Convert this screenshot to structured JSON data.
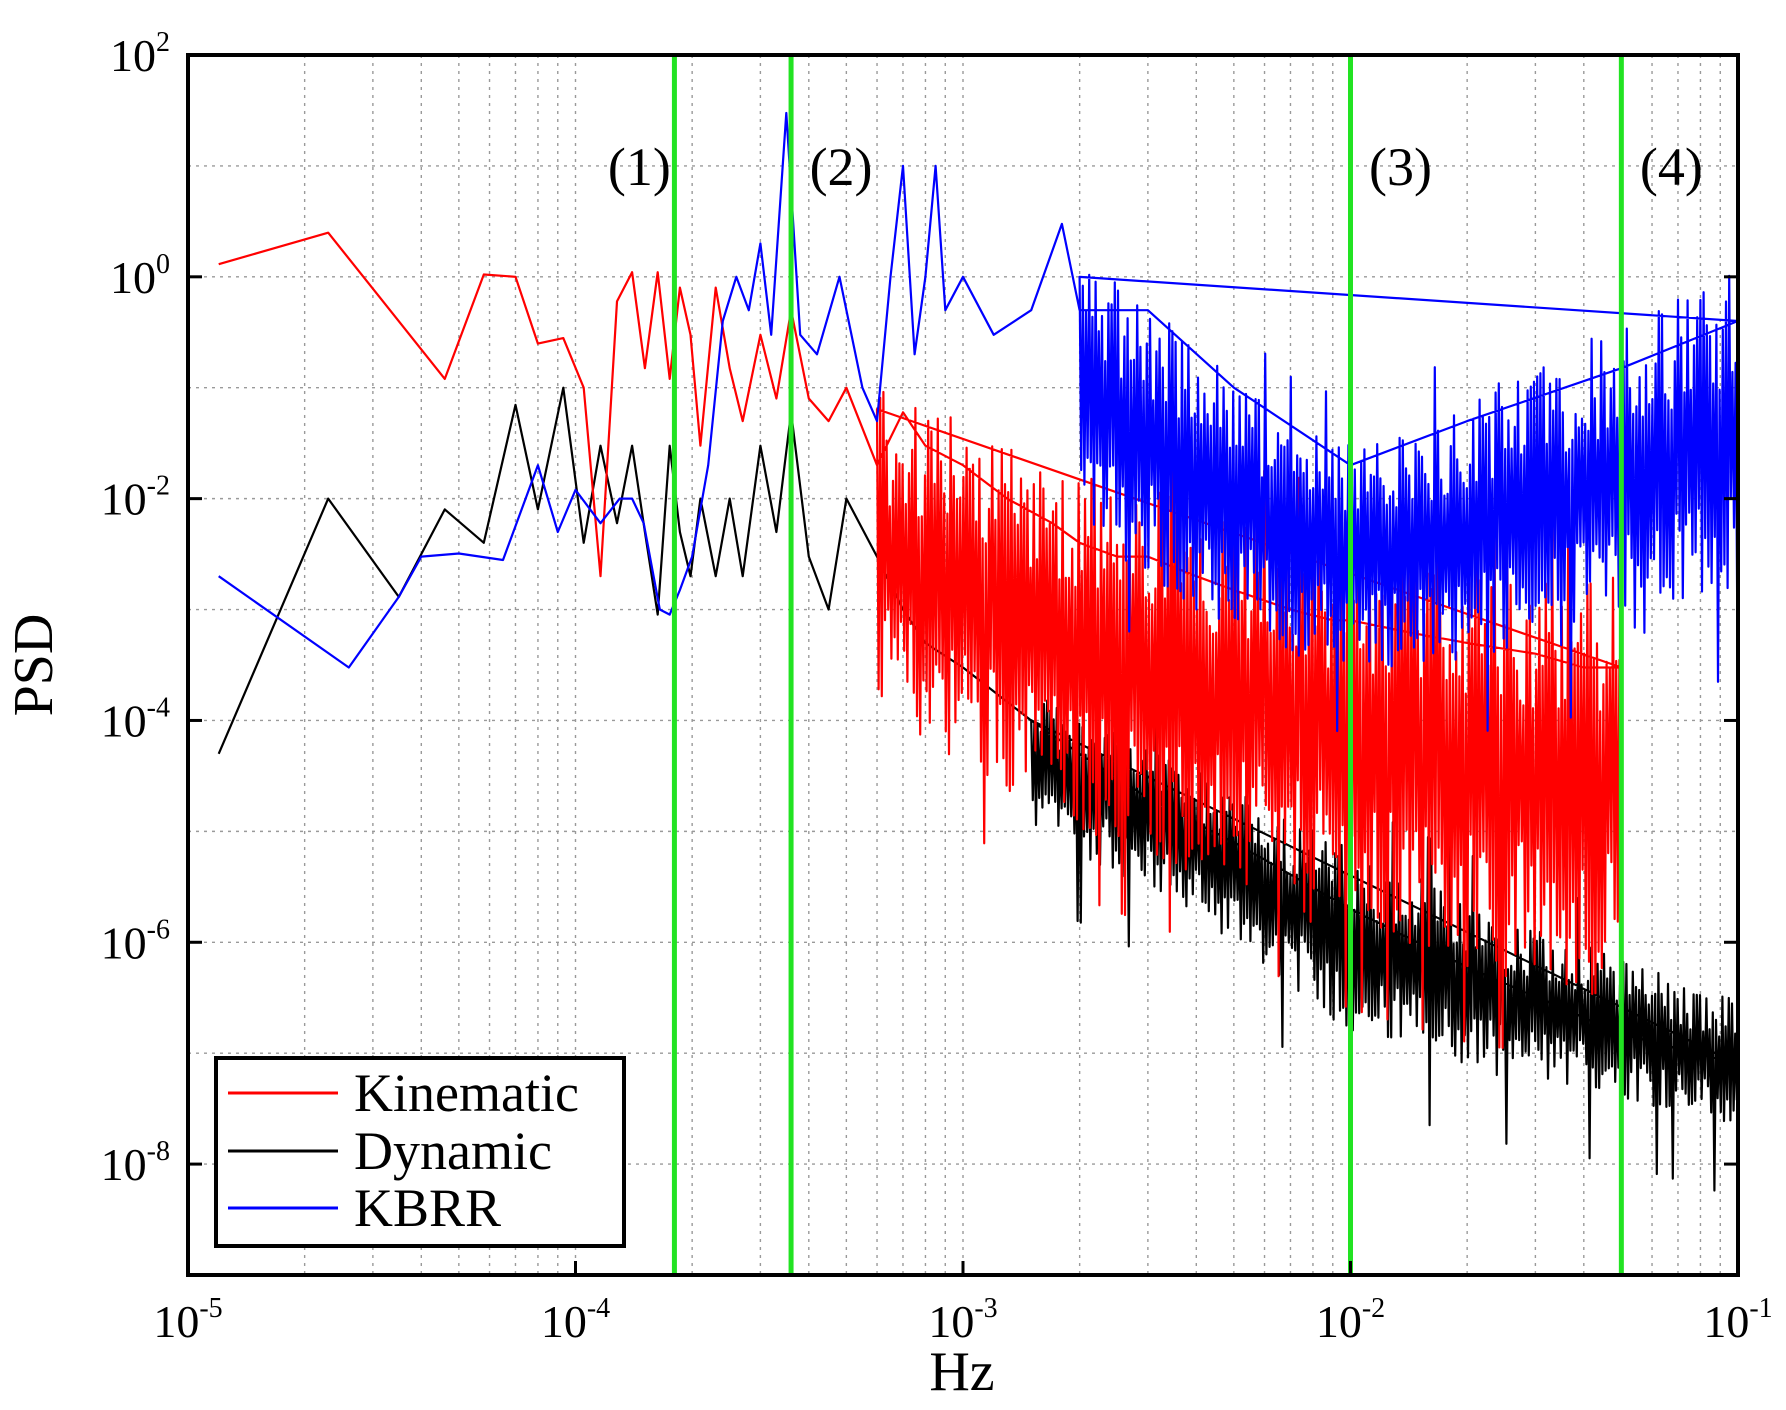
{
  "chart_data": {
    "type": "line",
    "title": "",
    "xlabel": "Hz",
    "ylabel": "PSD",
    "xscale": "log",
    "yscale": "log",
    "xlim": [
      1e-05,
      0.1
    ],
    "ylim": [
      1e-09,
      100
    ],
    "x_ticks": [
      {
        "base": "10",
        "exp": "-5",
        "value": 1e-05
      },
      {
        "base": "10",
        "exp": "-4",
        "value": 0.0001
      },
      {
        "base": "10",
        "exp": "-3",
        "value": 0.001
      },
      {
        "base": "10",
        "exp": "-2",
        "value": 0.01
      },
      {
        "base": "10",
        "exp": "-1",
        "value": 0.1
      }
    ],
    "y_ticks": [
      {
        "base": "10",
        "exp": "2",
        "value": 100
      },
      {
        "base": "10",
        "exp": "0",
        "value": 1
      },
      {
        "base": "10",
        "exp": "-2",
        "value": 0.01
      },
      {
        "base": "10",
        "exp": "-4",
        "value": 0.0001
      },
      {
        "base": "10",
        "exp": "-6",
        "value": 1e-06
      },
      {
        "base": "10",
        "exp": "-8",
        "value": 1e-08
      }
    ],
    "grid": true,
    "legend_position": "bottom-left",
    "series": [
      {
        "name": "Kinematic",
        "color": "#ff0000",
        "x": [
          1.2e-05,
          2.3e-05,
          4.6e-05,
          5.8e-05,
          7e-05,
          8e-05,
          9.3e-05,
          0.000105,
          0.000116,
          0.000128,
          0.00014,
          0.000151,
          0.000163,
          0.000175,
          0.000186,
          0.000198,
          0.00021,
          0.00023,
          0.00025,
          0.00027,
          0.0003,
          0.00033,
          0.00036,
          0.0004,
          0.00045,
          0.0005,
          0.0006,
          0.0007,
          0.0008,
          0.001,
          0.0013,
          0.0017,
          0.002,
          0.0025,
          0.003,
          0.004,
          0.005,
          0.007,
          0.009,
          0.01,
          0.015,
          0.02,
          0.03,
          0.04,
          0.05
        ],
        "values": [
          1.3,
          2.5,
          0.12,
          1.05,
          1.0,
          0.25,
          0.28,
          0.1,
          0.002,
          0.6,
          1.1,
          0.15,
          1.1,
          0.12,
          0.8,
          0.3,
          0.03,
          0.8,
          0.15,
          0.05,
          0.3,
          0.08,
          0.5,
          0.08,
          0.05,
          0.1,
          0.02,
          0.06,
          0.03,
          0.02,
          0.01,
          0.006,
          0.004,
          0.003,
          0.003,
          0.002,
          0.0015,
          0.001,
          0.0008,
          0.0008,
          0.0006,
          0.0005,
          0.0004,
          0.0003,
          0.0003
        ],
        "band_low": [
          {
            "x": 0.0006,
            "y": 0.0001
          },
          {
            "x": 0.001,
            "y": 4e-05
          },
          {
            "x": 0.002,
            "y": 1e-05
          },
          {
            "x": 0.005,
            "y": 3e-06
          },
          {
            "x": 0.01,
            "y": 1e-06
          },
          {
            "x": 0.02,
            "y": 5e-07
          },
          {
            "x": 0.05,
            "y": 3e-07
          }
        ],
        "band_high": [
          {
            "x": 0.0006,
            "y": 0.1
          },
          {
            "x": 0.001,
            "y": 0.05
          },
          {
            "x": 0.002,
            "y": 0.02
          },
          {
            "x": 0.005,
            "y": 0.008
          },
          {
            "x": 0.01,
            "y": 0.005
          },
          {
            "x": 0.02,
            "y": 0.003
          },
          {
            "x": 0.05,
            "y": 0.002
          }
        ]
      },
      {
        "name": "Dynamic",
        "color": "#000000",
        "x": [
          1.2e-05,
          2.3e-05,
          3.5e-05,
          4.6e-05,
          5.8e-05,
          7e-05,
          8e-05,
          9.3e-05,
          0.000105,
          0.000116,
          0.000128,
          0.00014,
          0.000151,
          0.000163,
          0.000175,
          0.000186,
          0.000198,
          0.00021,
          0.00023,
          0.00025,
          0.00027,
          0.0003,
          0.00033,
          0.00036,
          0.0004,
          0.00045,
          0.0005,
          0.0006,
          0.0007,
          0.0008,
          0.001,
          0.0015,
          0.002,
          0.003,
          0.005,
          0.01,
          0.02,
          0.05,
          0.1
        ],
        "values": [
          5e-05,
          0.01,
          0.0013,
          0.008,
          0.004,
          0.07,
          0.008,
          0.1,
          0.004,
          0.03,
          0.006,
          0.03,
          0.005,
          0.0009,
          0.03,
          0.005,
          0.002,
          0.01,
          0.002,
          0.01,
          0.002,
          0.03,
          0.005,
          0.06,
          0.003,
          0.001,
          0.01,
          0.003,
          0.001,
          0.0005,
          0.0003,
          0.0001,
          5e-05,
          2e-05,
          8e-06,
          2e-06,
          6e-07,
          1.5e-07,
          8e-08
        ],
        "band_low": [
          {
            "x": 0.0015,
            "y": 1e-05
          },
          {
            "x": 0.003,
            "y": 3e-06
          },
          {
            "x": 0.005,
            "y": 1e-06
          },
          {
            "x": 0.01,
            "y": 1.5e-07
          },
          {
            "x": 0.02,
            "y": 7e-08
          },
          {
            "x": 0.05,
            "y": 4e-08
          },
          {
            "x": 0.1,
            "y": 2e-08
          }
        ],
        "band_high": [
          {
            "x": 0.0015,
            "y": 0.0002
          },
          {
            "x": 0.003,
            "y": 6e-05
          },
          {
            "x": 0.005,
            "y": 2.5e-05
          },
          {
            "x": 0.01,
            "y": 7e-06
          },
          {
            "x": 0.02,
            "y": 2.5e-06
          },
          {
            "x": 0.05,
            "y": 7e-07
          },
          {
            "x": 0.1,
            "y": 3e-07
          }
        ]
      },
      {
        "name": "KBRR",
        "color": "#0000ff",
        "x": [
          1.2e-05,
          2.6e-05,
          3.5e-05,
          4e-05,
          5e-05,
          6.5e-05,
          8e-05,
          9e-05,
          0.0001,
          0.000116,
          0.00013,
          0.00014,
          0.00015,
          0.000165,
          0.000175,
          0.000186,
          0.0002,
          0.00022,
          0.00024,
          0.00026,
          0.00028,
          0.0003,
          0.00032,
          0.00035,
          0.00038,
          0.00042,
          0.00048,
          0.00055,
          0.0006,
          0.00065,
          0.0007,
          0.00075,
          0.0008,
          0.00085,
          0.0009,
          0.001,
          0.0012,
          0.0015,
          0.0018,
          0.002,
          0.003,
          0.005,
          0.01,
          0.02,
          0.05,
          0.1
        ],
        "values": [
          0.002,
          0.0003,
          0.0013,
          0.003,
          0.0032,
          0.0028,
          0.02,
          0.005,
          0.012,
          0.006,
          0.01,
          0.01,
          0.006,
          0.001,
          0.0009,
          0.0015,
          0.003,
          0.02,
          0.4,
          1.0,
          0.5,
          2.0,
          0.3,
          30.0,
          0.3,
          0.2,
          1.0,
          0.1,
          0.05,
          1.0,
          10.0,
          0.2,
          1.0,
          10.0,
          0.5,
          1.0,
          0.3,
          0.5,
          3.0,
          0.5,
          0.5,
          0.1,
          0.02,
          0.05,
          0.15,
          0.4
        ],
        "band_low": [
          {
            "x": 0.002,
            "y": 0.005
          },
          {
            "x": 0.004,
            "y": 0.001
          },
          {
            "x": 0.007,
            "y": 0.0004
          },
          {
            "x": 0.01,
            "y": 0.0003
          },
          {
            "x": 0.02,
            "y": 0.0003
          },
          {
            "x": 0.05,
            "y": 0.0005
          },
          {
            "x": 0.1,
            "y": 0.001
          }
        ],
        "band_high": [
          {
            "x": 0.002,
            "y": 1.5
          },
          {
            "x": 0.004,
            "y": 0.3
          },
          {
            "x": 0.007,
            "y": 0.05
          },
          {
            "x": 0.01,
            "y": 0.03
          },
          {
            "x": 0.02,
            "y": 0.08
          },
          {
            "x": 0.05,
            "y": 0.4
          },
          {
            "x": 0.1,
            "y": 1.2
          }
        ]
      }
    ],
    "vertical_lines": [
      {
        "x": 0.00018,
        "color": "#22e322",
        "label": "(1)"
      },
      {
        "x": 0.00036,
        "color": "#22e322",
        "label": "(2)"
      },
      {
        "x": 0.01,
        "color": "#22e322",
        "label": "(3)"
      },
      {
        "x": 0.05,
        "color": "#22e322",
        "label": "(4)"
      }
    ]
  }
}
